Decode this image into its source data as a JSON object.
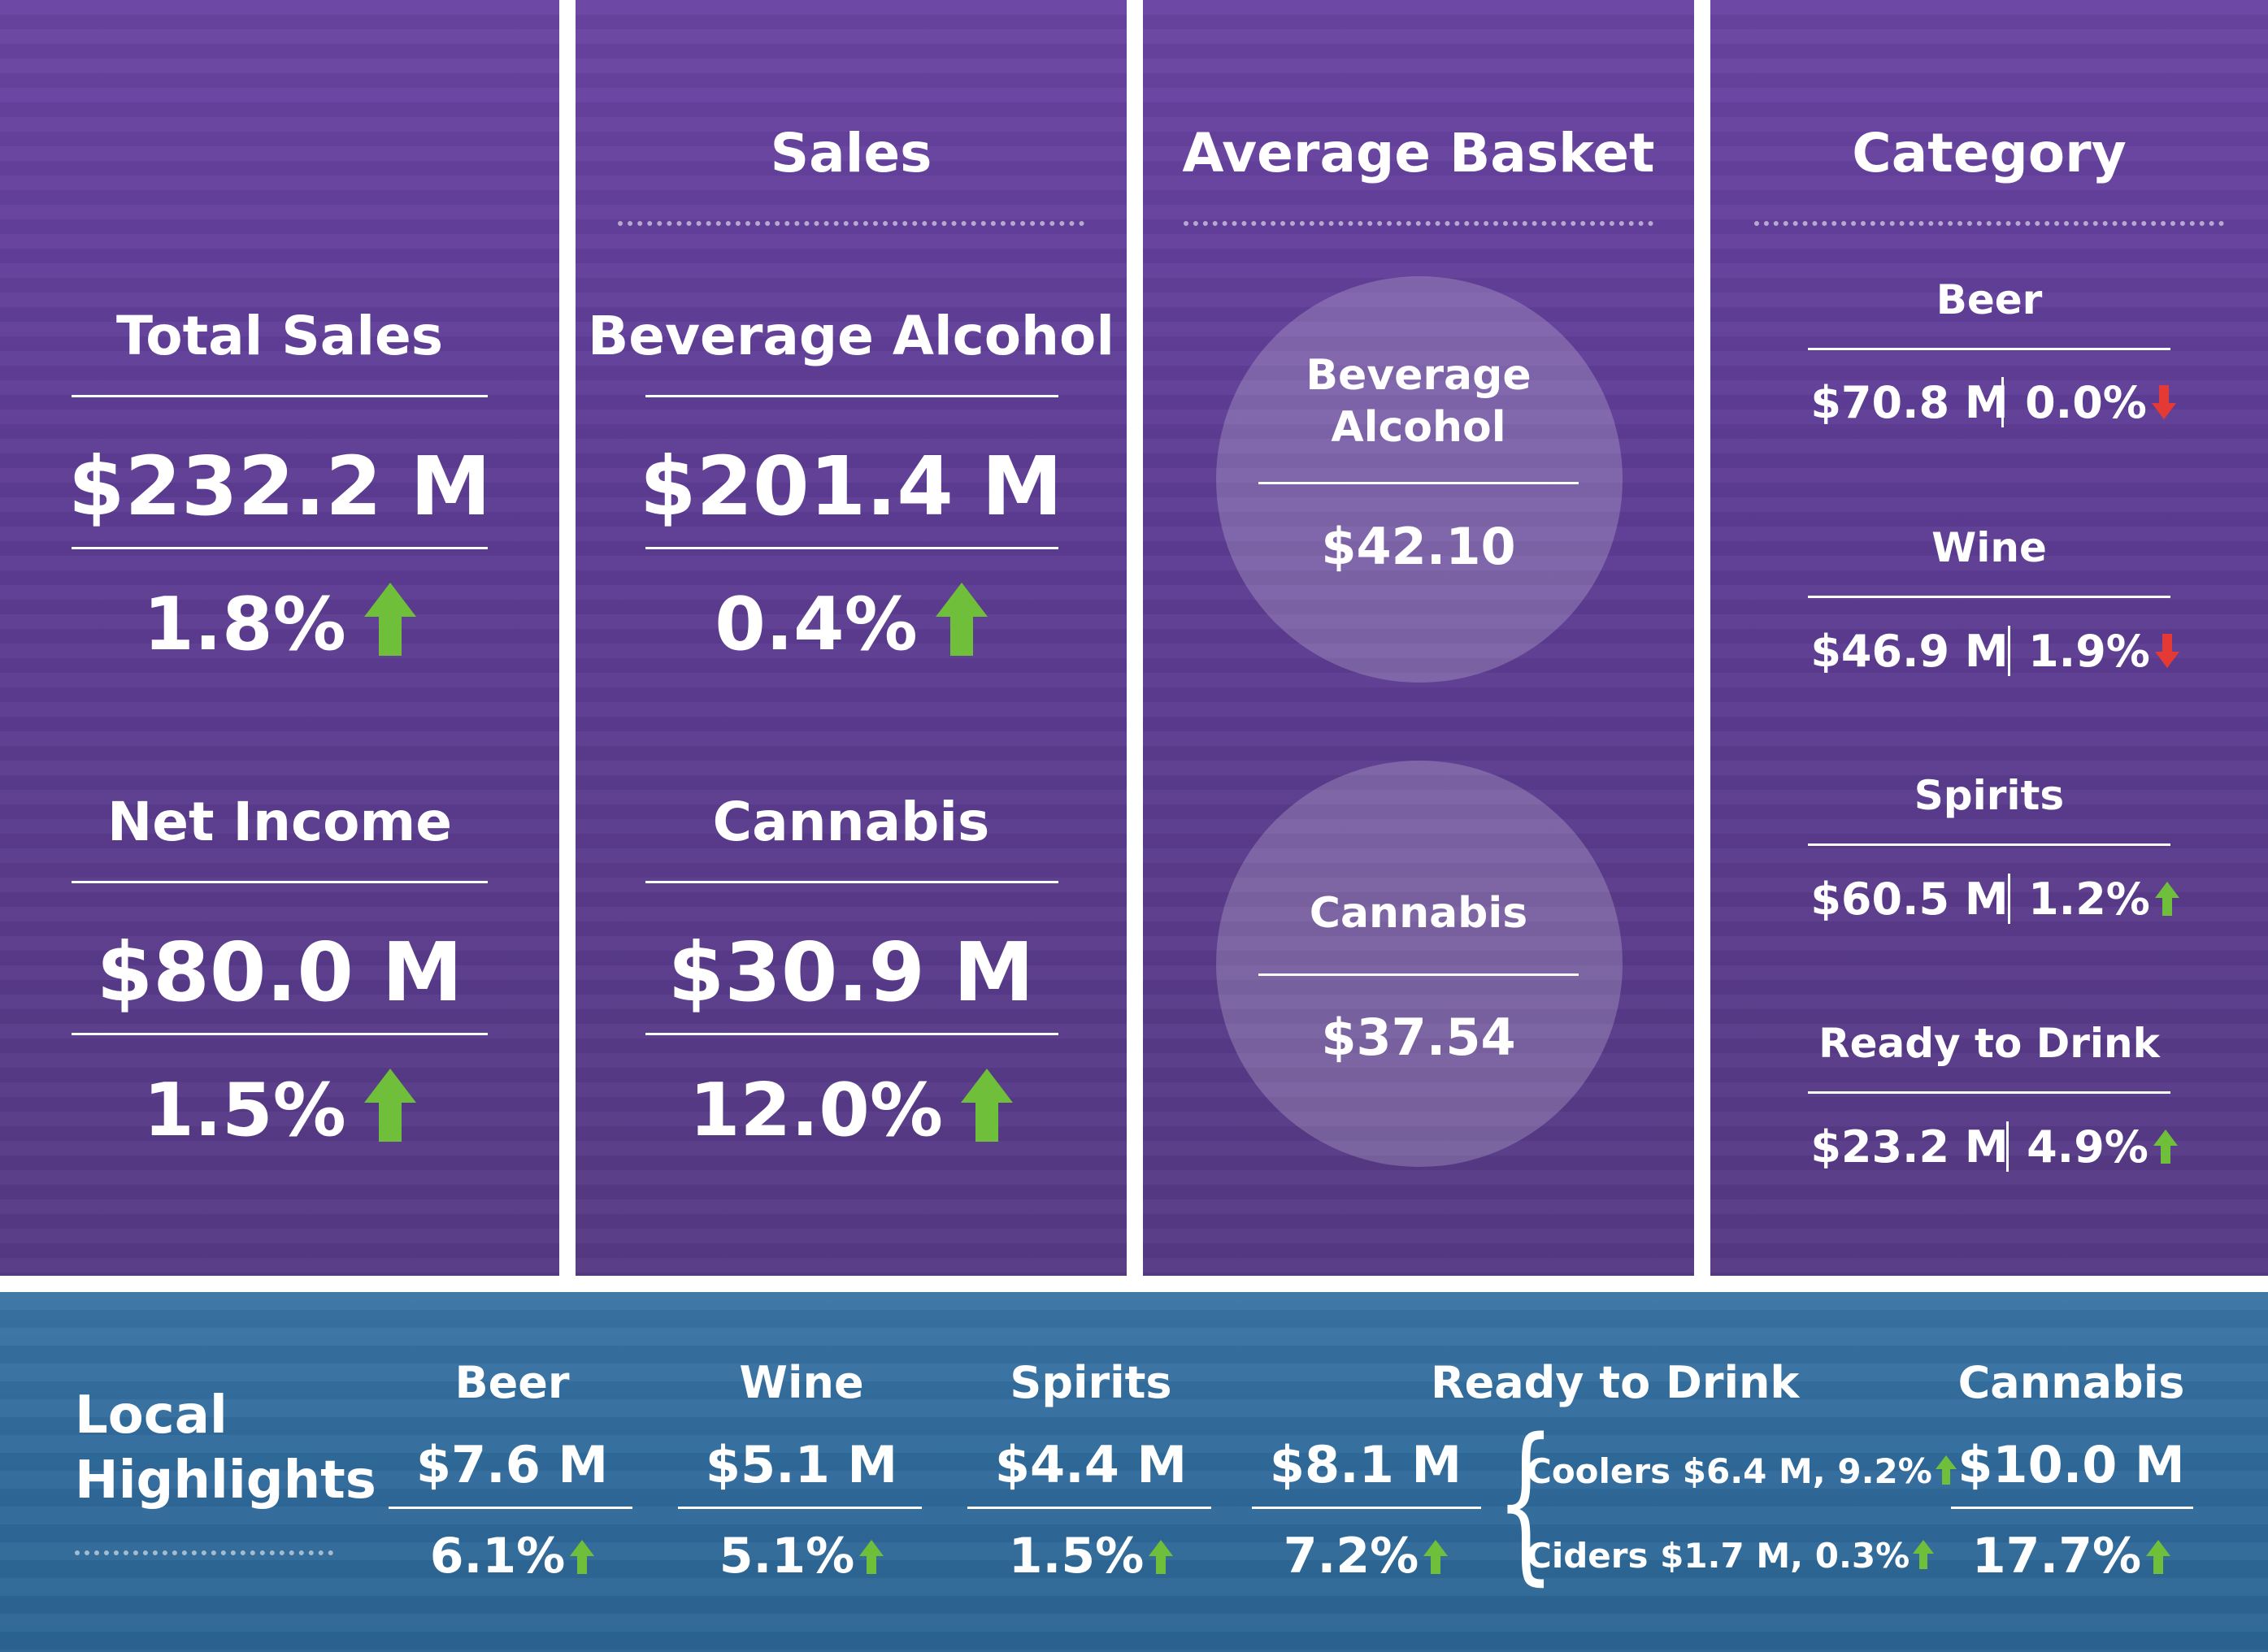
{
  "col1": {
    "total_sales": {
      "label": "Total Sales",
      "value": "$232.2 M",
      "change": "1.8%",
      "direction": "up"
    },
    "net_income": {
      "label": "Net Income",
      "value": "$80.0 M",
      "change": "1.5%",
      "direction": "up"
    }
  },
  "sales": {
    "title": "Sales",
    "beverage_alcohol": {
      "label": "Beverage Alcohol",
      "value": "$201.4 M",
      "change": "0.4%",
      "direction": "up"
    },
    "cannabis": {
      "label": "Cannabis",
      "value": "$30.9 M",
      "change": "12.0%",
      "direction": "up"
    }
  },
  "average_basket": {
    "title": "Average Basket",
    "beverage_alcohol": {
      "label_line1": "Beverage",
      "label_line2": "Alcohol",
      "value": "$42.10"
    },
    "cannabis": {
      "label": "Cannabis",
      "value": "$37.54"
    }
  },
  "category": {
    "title": "Category",
    "items": [
      {
        "name": "Beer",
        "value": "$70.8 M",
        "change": "0.0%",
        "direction": "down"
      },
      {
        "name": "Wine",
        "value": "$46.9 M",
        "change": "1.9%",
        "direction": "down"
      },
      {
        "name": "Spirits",
        "value": "$60.5 M",
        "change": "1.2%",
        "direction": "up"
      },
      {
        "name": "Ready to Drink",
        "value": "$23.2 M",
        "change": "4.9%",
        "direction": "up"
      }
    ]
  },
  "local_highlights": {
    "title_line1": "Local",
    "title_line2": "Highlights",
    "items": [
      {
        "name": "Beer",
        "value": "$7.6 M",
        "change": "6.1%",
        "direction": "up"
      },
      {
        "name": "Wine",
        "value": "$5.1 M",
        "change": "5.1%",
        "direction": "up"
      },
      {
        "name": "Spirits",
        "value": "$4.4 M",
        "change": "1.5%",
        "direction": "up"
      },
      {
        "name": "Ready to Drink",
        "value": "$8.1 M",
        "change": "7.2%",
        "direction": "up"
      },
      {
        "name": "Cannabis",
        "value": "$10.0 M",
        "change": "17.7%",
        "direction": "up"
      }
    ],
    "rtd_breakdown": [
      {
        "text": "Coolers $6.4 M, 9.2%",
        "direction": "up"
      },
      {
        "text": "Ciders $1.7 M, 0.3%",
        "direction": "up"
      }
    ]
  },
  "colors": {
    "purple_panel": "#5e3d95",
    "blue_band": "#2f6a9b",
    "up_arrow": "#6fbf3b",
    "down_arrow": "#e53935"
  }
}
